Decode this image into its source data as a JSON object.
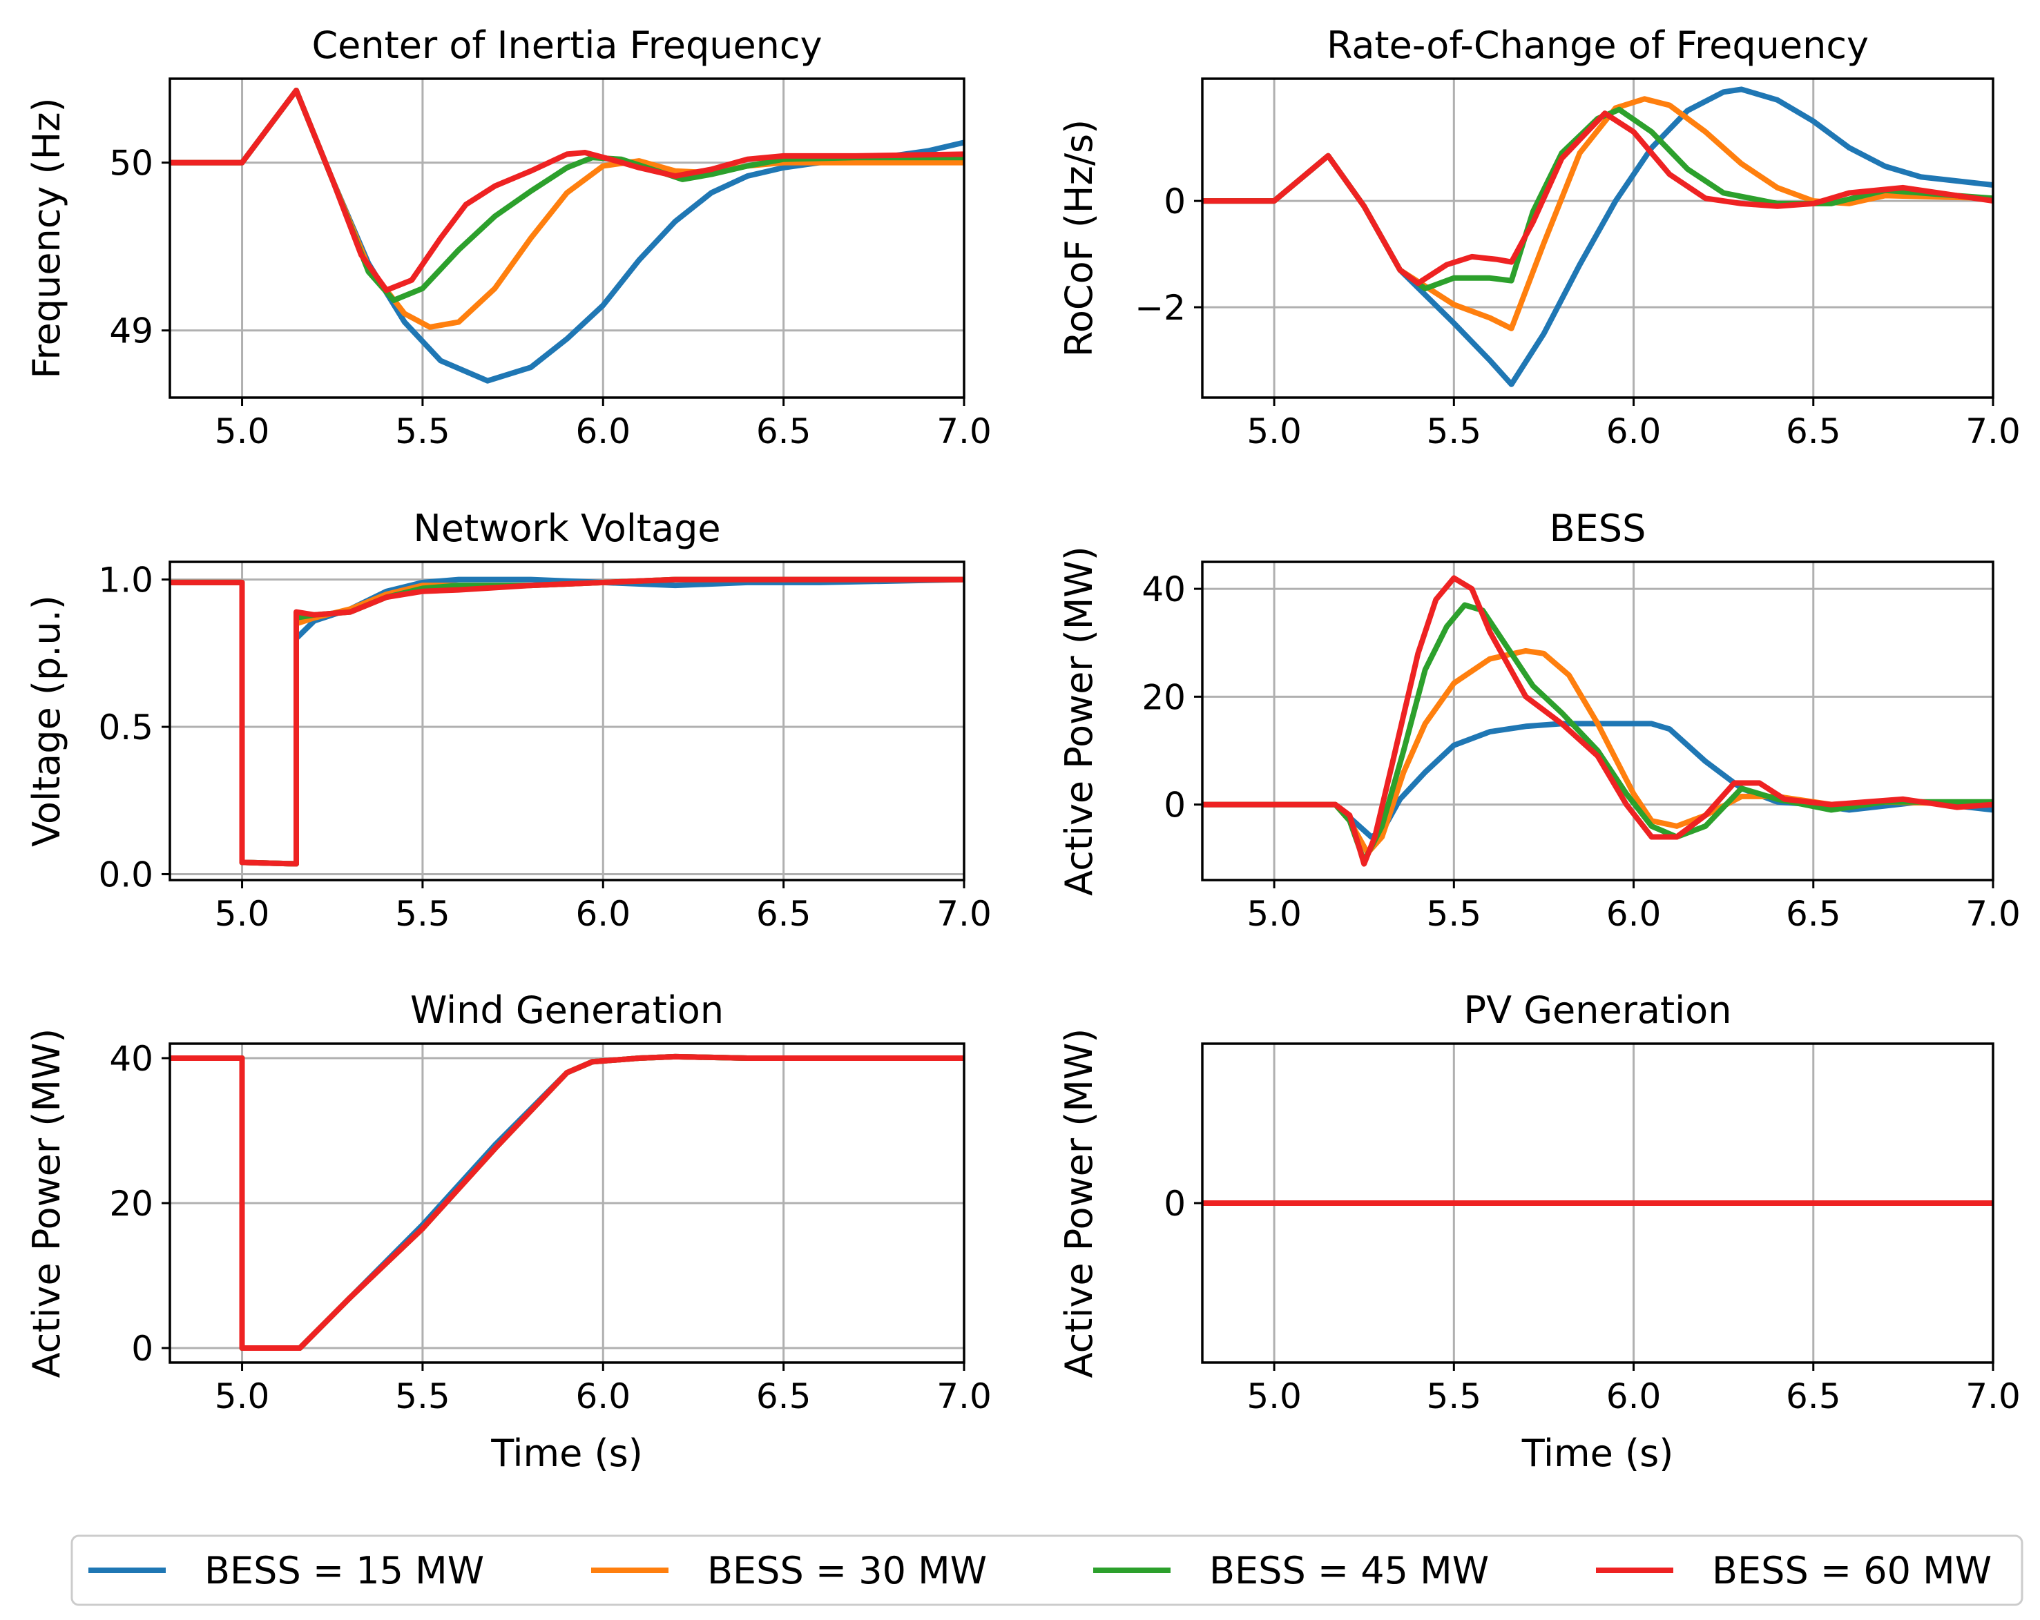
{
  "colors": {
    "series": [
      "#1f77b4",
      "#ff7f0e",
      "#2ca02c",
      "#ee2222"
    ],
    "grid": "#b0b0b0",
    "frame": "#000000"
  },
  "legend": {
    "placement": "bottom-center",
    "entries": [
      "BESS = 15 MW",
      "BESS = 30 MW",
      "BESS = 45 MW",
      "BESS = 60 MW"
    ]
  },
  "chart_data": [
    {
      "type": "line",
      "title": "Center of Inertia Frequency",
      "xlabel": "",
      "ylabel": "Frequency (Hz)",
      "xlim": [
        4.8,
        7.0
      ],
      "ylim": [
        48.6,
        50.5
      ],
      "xticks": [
        5.0,
        5.5,
        6.0,
        6.5,
        7.0
      ],
      "xtick_labels": [
        "5.0",
        "5.5",
        "6.0",
        "6.5",
        "7.0"
      ],
      "yticks": [
        49,
        50
      ],
      "ytick_labels": [
        "49",
        "50"
      ],
      "grid": true,
      "series": [
        {
          "name": "BESS = 15 MW",
          "x": [
            4.8,
            5.0,
            5.15,
            5.25,
            5.35,
            5.45,
            5.55,
            5.68,
            5.8,
            5.9,
            6.0,
            6.1,
            6.2,
            6.3,
            6.4,
            6.5,
            6.6,
            6.7,
            6.8,
            6.9,
            7.0
          ],
          "y": [
            50.0,
            50.0,
            50.43,
            49.9,
            49.4,
            49.05,
            48.82,
            48.7,
            48.78,
            48.95,
            49.15,
            49.42,
            49.65,
            49.82,
            49.92,
            49.97,
            50.0,
            50.02,
            50.04,
            50.07,
            50.12
          ]
        },
        {
          "name": "BESS = 30 MW",
          "x": [
            4.8,
            5.0,
            5.15,
            5.25,
            5.35,
            5.45,
            5.52,
            5.6,
            5.7,
            5.8,
            5.9,
            6.0,
            6.1,
            6.2,
            6.3,
            6.4,
            6.5,
            6.7,
            7.0
          ],
          "y": [
            50.0,
            50.0,
            50.43,
            49.9,
            49.38,
            49.1,
            49.02,
            49.05,
            49.25,
            49.55,
            49.82,
            49.98,
            50.01,
            49.95,
            49.94,
            49.98,
            50.0,
            50.0,
            50.0
          ]
        },
        {
          "name": "BESS = 45 MW",
          "x": [
            4.8,
            5.0,
            5.15,
            5.25,
            5.35,
            5.42,
            5.5,
            5.6,
            5.7,
            5.8,
            5.9,
            5.97,
            6.05,
            6.15,
            6.22,
            6.3,
            6.4,
            6.5,
            6.7,
            7.0
          ],
          "y": [
            50.0,
            50.0,
            50.43,
            49.9,
            49.35,
            49.18,
            49.25,
            49.48,
            49.68,
            49.83,
            49.97,
            50.03,
            50.02,
            49.95,
            49.9,
            49.93,
            49.98,
            50.02,
            50.03,
            50.03
          ]
        },
        {
          "name": "BESS = 60 MW",
          "x": [
            4.8,
            5.0,
            5.15,
            5.25,
            5.33,
            5.4,
            5.47,
            5.55,
            5.62,
            5.7,
            5.8,
            5.9,
            5.95,
            6.02,
            6.1,
            6.2,
            6.3,
            6.4,
            6.5,
            6.7,
            7.0
          ],
          "y": [
            50.0,
            50.0,
            50.43,
            49.9,
            49.45,
            49.24,
            49.3,
            49.55,
            49.75,
            49.86,
            49.95,
            50.05,
            50.06,
            50.02,
            49.97,
            49.92,
            49.96,
            50.02,
            50.04,
            50.04,
            50.05
          ]
        }
      ]
    },
    {
      "type": "line",
      "title": "Rate-of-Change of Frequency",
      "xlabel": "",
      "ylabel": "RoCoF (Hz/s)",
      "xlim": [
        4.8,
        7.0
      ],
      "ylim": [
        -3.7,
        2.3
      ],
      "xticks": [
        5.0,
        5.5,
        6.0,
        6.5,
        7.0
      ],
      "xtick_labels": [
        "5.0",
        "5.5",
        "6.0",
        "6.5",
        "7.0"
      ],
      "yticks": [
        -2,
        0
      ],
      "ytick_labels": [
        "−2",
        "0"
      ],
      "grid": true,
      "series": [
        {
          "name": "BESS = 15 MW",
          "x": [
            4.8,
            5.0,
            5.15,
            5.25,
            5.35,
            5.5,
            5.6,
            5.66,
            5.75,
            5.85,
            5.95,
            6.05,
            6.15,
            6.25,
            6.3,
            6.4,
            6.5,
            6.6,
            6.7,
            6.8,
            7.0
          ],
          "y": [
            0.0,
            0.0,
            0.85,
            -0.1,
            -1.3,
            -2.3,
            -3.0,
            -3.45,
            -2.5,
            -1.2,
            0.0,
            1.0,
            1.7,
            2.05,
            2.1,
            1.9,
            1.5,
            1.0,
            0.65,
            0.45,
            0.3
          ]
        },
        {
          "name": "BESS = 30 MW",
          "x": [
            4.8,
            5.0,
            5.15,
            5.25,
            5.35,
            5.5,
            5.6,
            5.66,
            5.75,
            5.85,
            5.95,
            6.03,
            6.1,
            6.2,
            6.3,
            6.4,
            6.5,
            6.6,
            6.7,
            7.0
          ],
          "y": [
            0.0,
            0.0,
            0.85,
            -0.1,
            -1.3,
            -1.95,
            -2.2,
            -2.4,
            -0.8,
            0.9,
            1.75,
            1.92,
            1.8,
            1.3,
            0.7,
            0.25,
            0.0,
            -0.05,
            0.1,
            0.05
          ]
        },
        {
          "name": "BESS = 45 MW",
          "x": [
            4.8,
            5.0,
            5.15,
            5.25,
            5.35,
            5.42,
            5.5,
            5.6,
            5.66,
            5.72,
            5.8,
            5.9,
            5.96,
            6.05,
            6.15,
            6.25,
            6.4,
            6.55,
            6.7,
            7.0
          ],
          "y": [
            0.0,
            0.0,
            0.85,
            -0.1,
            -1.3,
            -1.65,
            -1.45,
            -1.45,
            -1.5,
            -0.2,
            0.9,
            1.55,
            1.72,
            1.3,
            0.6,
            0.15,
            -0.05,
            -0.05,
            0.2,
            0.05
          ]
        },
        {
          "name": "BESS = 60 MW",
          "x": [
            4.8,
            5.0,
            5.15,
            5.25,
            5.35,
            5.4,
            5.48,
            5.55,
            5.62,
            5.66,
            5.72,
            5.8,
            5.92,
            6.0,
            6.1,
            6.2,
            6.3,
            6.4,
            6.5,
            6.6,
            6.75,
            7.0
          ],
          "y": [
            0.0,
            0.0,
            0.85,
            -0.1,
            -1.3,
            -1.55,
            -1.2,
            -1.05,
            -1.1,
            -1.15,
            -0.4,
            0.8,
            1.65,
            1.3,
            0.5,
            0.05,
            -0.05,
            -0.1,
            -0.05,
            0.15,
            0.25,
            0.0
          ]
        }
      ]
    },
    {
      "type": "line",
      "title": "Network Voltage",
      "xlabel": "",
      "ylabel": "Voltage (p.u.)",
      "xlim": [
        4.8,
        7.0
      ],
      "ylim": [
        -0.02,
        1.06
      ],
      "xticks": [
        5.0,
        5.5,
        6.0,
        6.5,
        7.0
      ],
      "xtick_labels": [
        "5.0",
        "5.5",
        "6.0",
        "6.5",
        "7.0"
      ],
      "yticks": [
        0.0,
        0.5,
        1.0
      ],
      "ytick_labels": [
        "0.0",
        "0.5",
        "1.0"
      ],
      "grid": true,
      "series": [
        {
          "name": "BESS = 15 MW",
          "x": [
            4.8,
            5.0,
            5.0,
            5.15,
            5.15,
            5.2,
            5.3,
            5.4,
            5.5,
            5.6,
            5.8,
            6.0,
            6.2,
            6.4,
            6.6,
            7.0
          ],
          "y": [
            0.99,
            0.99,
            0.04,
            0.035,
            0.8,
            0.86,
            0.9,
            0.96,
            0.99,
            1.0,
            1.0,
            0.99,
            0.98,
            0.99,
            0.99,
            1.0
          ]
        },
        {
          "name": "BESS = 30 MW",
          "x": [
            4.8,
            5.0,
            5.0,
            5.15,
            5.15,
            5.2,
            5.3,
            5.4,
            5.5,
            5.6,
            5.8,
            6.0,
            6.2,
            6.4,
            6.6,
            7.0
          ],
          "y": [
            0.99,
            0.99,
            0.04,
            0.035,
            0.85,
            0.87,
            0.9,
            0.95,
            0.98,
            0.98,
            0.98,
            0.99,
            1.0,
            1.0,
            1.0,
            1.0
          ]
        },
        {
          "name": "BESS = 45 MW",
          "x": [
            4.8,
            5.0,
            5.0,
            5.15,
            5.15,
            5.2,
            5.3,
            5.4,
            5.5,
            5.6,
            5.8,
            6.0,
            6.2,
            6.4,
            6.6,
            7.0
          ],
          "y": [
            0.99,
            0.99,
            0.04,
            0.035,
            0.87,
            0.88,
            0.89,
            0.94,
            0.97,
            0.98,
            0.98,
            0.99,
            1.0,
            1.0,
            1.0,
            1.0
          ]
        },
        {
          "name": "BESS = 60 MW",
          "x": [
            4.8,
            5.0,
            5.0,
            5.15,
            5.15,
            5.2,
            5.3,
            5.4,
            5.5,
            5.6,
            5.8,
            6.0,
            6.2,
            6.4,
            6.6,
            7.0
          ],
          "y": [
            0.99,
            0.99,
            0.04,
            0.035,
            0.89,
            0.88,
            0.89,
            0.94,
            0.96,
            0.965,
            0.98,
            0.99,
            1.0,
            1.0,
            1.0,
            1.0
          ]
        }
      ]
    },
    {
      "type": "line",
      "title": "BESS",
      "xlabel": "",
      "ylabel": "Active Power (MW)",
      "xlim": [
        4.8,
        7.0
      ],
      "ylim": [
        -14,
        45
      ],
      "xticks": [
        5.0,
        5.5,
        6.0,
        6.5,
        7.0
      ],
      "xtick_labels": [
        "5.0",
        "5.5",
        "6.0",
        "6.5",
        "7.0"
      ],
      "yticks": [
        0,
        20,
        40
      ],
      "ytick_labels": [
        "0",
        "20",
        "40"
      ],
      "grid": true,
      "series": [
        {
          "name": "BESS = 15 MW",
          "x": [
            4.8,
            5.17,
            5.22,
            5.27,
            5.3,
            5.35,
            5.42,
            5.5,
            5.6,
            5.7,
            5.8,
            5.9,
            6.0,
            6.05,
            6.1,
            6.2,
            6.3,
            6.4,
            6.5,
            6.6,
            6.8,
            7.0
          ],
          "y": [
            0,
            0,
            -3,
            -6,
            -5,
            1,
            6,
            11,
            13.5,
            14.5,
            15,
            15,
            15,
            15,
            14,
            8,
            3,
            0.5,
            0,
            -1,
            0.5,
            -1
          ]
        },
        {
          "name": "BESS = 30 MW",
          "x": [
            4.8,
            5.17,
            5.21,
            5.26,
            5.3,
            5.36,
            5.42,
            5.5,
            5.6,
            5.7,
            5.75,
            5.82,
            5.9,
            6.0,
            6.05,
            6.12,
            6.2,
            6.3,
            6.4,
            6.55,
            6.7,
            7.0
          ],
          "y": [
            0,
            0,
            -3,
            -9,
            -6,
            6,
            15,
            22.5,
            27,
            28.5,
            28,
            24,
            15,
            2,
            -3,
            -4,
            -2,
            1.5,
            1.5,
            0,
            0.5,
            0
          ]
        },
        {
          "name": "BESS = 45 MW",
          "x": [
            4.8,
            5.17,
            5.21,
            5.25,
            5.3,
            5.36,
            5.42,
            5.48,
            5.53,
            5.58,
            5.65,
            5.72,
            5.8,
            5.9,
            5.98,
            6.05,
            6.12,
            6.2,
            6.3,
            6.4,
            6.55,
            6.7,
            7.0
          ],
          "y": [
            0,
            0,
            -3,
            -10.5,
            -4,
            10,
            25,
            33,
            37,
            36,
            29,
            22,
            17,
            10,
            2,
            -4,
            -6,
            -4,
            3,
            1,
            -1,
            0.5,
            0.5
          ]
        },
        {
          "name": "BESS = 60 MW",
          "x": [
            4.8,
            5.17,
            5.21,
            5.25,
            5.28,
            5.33,
            5.4,
            5.45,
            5.5,
            5.55,
            5.6,
            5.7,
            5.8,
            5.9,
            5.98,
            6.05,
            6.12,
            6.2,
            6.28,
            6.35,
            6.42,
            6.55,
            6.75,
            6.9,
            7.0
          ],
          "y": [
            0,
            0,
            -2,
            -11,
            -6,
            8,
            28,
            38,
            42,
            40,
            32,
            20,
            15,
            9,
            0,
            -6,
            -6,
            -2,
            4,
            4,
            1,
            0,
            1,
            -0.5,
            0
          ]
        }
      ]
    },
    {
      "type": "line",
      "title": "Wind Generation",
      "xlabel": "Time (s)",
      "ylabel": "Active Power (MW)",
      "xlim": [
        4.8,
        7.0
      ],
      "ylim": [
        -2,
        42
      ],
      "xticks": [
        5.0,
        5.5,
        6.0,
        6.5,
        7.0
      ],
      "xtick_labels": [
        "5.0",
        "5.5",
        "6.0",
        "6.5",
        "7.0"
      ],
      "yticks": [
        0,
        20,
        40
      ],
      "ytick_labels": [
        "0",
        "20",
        "40"
      ],
      "grid": true,
      "series": [
        {
          "name": "BESS = 15 MW",
          "x": [
            4.8,
            5.0,
            5.0,
            5.16,
            5.3,
            5.5,
            5.7,
            5.9,
            5.97,
            6.1,
            6.2,
            6.4,
            7.0
          ],
          "y": [
            40,
            40,
            0,
            0,
            7,
            17,
            28,
            38,
            39.5,
            40,
            40.2,
            40,
            40
          ]
        },
        {
          "name": "BESS = 30 MW",
          "x": [
            4.8,
            5.0,
            5.0,
            5.16,
            5.3,
            5.5,
            5.7,
            5.9,
            5.97,
            6.1,
            6.2,
            6.4,
            7.0
          ],
          "y": [
            40,
            40,
            0,
            0,
            7,
            16.5,
            27.5,
            38,
            39.5,
            40,
            40.2,
            40,
            40
          ]
        },
        {
          "name": "BESS = 45 MW",
          "x": [
            4.8,
            5.0,
            5.0,
            5.16,
            5.3,
            5.5,
            5.7,
            5.9,
            5.97,
            6.1,
            6.2,
            6.4,
            7.0
          ],
          "y": [
            40,
            40,
            0,
            0,
            7,
            16.5,
            27.5,
            38,
            39.5,
            40,
            40.2,
            40,
            40
          ]
        },
        {
          "name": "BESS = 60 MW",
          "x": [
            4.8,
            5.0,
            5.0,
            5.16,
            5.3,
            5.5,
            5.7,
            5.9,
            5.97,
            6.1,
            6.2,
            6.4,
            7.0
          ],
          "y": [
            40,
            40,
            0,
            0,
            7,
            16.5,
            27.5,
            38,
            39.5,
            40,
            40.2,
            40,
            40
          ]
        }
      ]
    },
    {
      "type": "line",
      "title": "PV Generation",
      "xlabel": "Time (s)",
      "ylabel": "Active Power (MW)",
      "xlim": [
        4.8,
        7.0
      ],
      "ylim": [
        -0.055,
        0.055
      ],
      "xticks": [
        5.0,
        5.5,
        6.0,
        6.5,
        7.0
      ],
      "xtick_labels": [
        "5.0",
        "5.5",
        "6.0",
        "6.5",
        "7.0"
      ],
      "yticks": [
        0
      ],
      "ytick_labels": [
        "0"
      ],
      "grid": true,
      "series": [
        {
          "name": "BESS = 15 MW",
          "x": [
            4.8,
            7.0
          ],
          "y": [
            0,
            0
          ]
        },
        {
          "name": "BESS = 30 MW",
          "x": [
            4.8,
            7.0
          ],
          "y": [
            0,
            0
          ]
        },
        {
          "name": "BESS = 45 MW",
          "x": [
            4.8,
            7.0
          ],
          "y": [
            0,
            0
          ]
        },
        {
          "name": "BESS = 60 MW",
          "x": [
            4.8,
            7.0
          ],
          "y": [
            0,
            0
          ]
        }
      ]
    }
  ]
}
